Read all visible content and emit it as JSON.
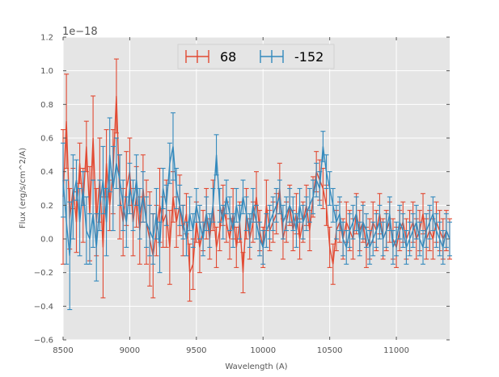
{
  "chart_data": {
    "type": "line",
    "errorbars": true,
    "xlabel": "Wavelength (A)",
    "ylabel": "Flux (erg/s/cm^2/A)",
    "y_offset_label": "1e−18",
    "xlim": [
      8500,
      11400
    ],
    "ylim": [
      -0.6,
      1.2
    ],
    "grid": true,
    "legend_position": "top-center",
    "x_ticks": [
      8500,
      9000,
      9500,
      10000,
      10500,
      11000
    ],
    "x_tick_labels": [
      "8500",
      "9000",
      "9500",
      "10000",
      "10500",
      "11000"
    ],
    "y_ticks": [
      -0.6,
      -0.4,
      -0.2,
      0.0,
      0.2,
      0.4,
      0.6,
      0.8,
      1.0,
      1.2
    ],
    "y_tick_labels": [
      "−0.6",
      "−0.4",
      "−0.2",
      "0.0",
      "0.2",
      "0.4",
      "0.6",
      "0.8",
      "1.0",
      "1.2"
    ],
    "series": [
      {
        "name": "68",
        "color": "#e24a33",
        "x": [
          8500,
          8525,
          8550,
          8575,
          8600,
          8625,
          8650,
          8675,
          8700,
          8725,
          8750,
          8775,
          8800,
          8825,
          8850,
          8875,
          8900,
          8925,
          8950,
          8975,
          9000,
          9025,
          9050,
          9075,
          9100,
          9125,
          9150,
          9175,
          9200,
          9225,
          9250,
          9275,
          9300,
          9325,
          9350,
          9375,
          9400,
          9425,
          9450,
          9475,
          9500,
          9525,
          9550,
          9575,
          9600,
          9625,
          9650,
          9675,
          9700,
          9725,
          9750,
          9775,
          9800,
          9825,
          9850,
          9875,
          9900,
          9925,
          9950,
          9975,
          10000,
          10025,
          10050,
          10075,
          10100,
          10125,
          10150,
          10175,
          10200,
          10225,
          10250,
          10275,
          10300,
          10325,
          10350,
          10375,
          10400,
          10425,
          10450,
          10475,
          10500,
          10525,
          10550,
          10575,
          10600,
          10625,
          10650,
          10675,
          10700,
          10725,
          10750,
          10775,
          10800,
          10825,
          10850,
          10875,
          10900,
          10925,
          10950,
          10975,
          11000,
          11025,
          11050,
          11075,
          11100,
          11125,
          11150,
          11175,
          11200,
          11225,
          11250,
          11275,
          11300,
          11325,
          11350,
          11375,
          11400
        ],
        "y": [
          0.25,
          0.7,
          0.12,
          0.3,
          0.1,
          0.45,
          0.2,
          0.55,
          0.15,
          0.6,
          0.1,
          0.35,
          -0.05,
          0.45,
          0.2,
          0.4,
          0.85,
          0.25,
          0.1,
          0.3,
          0.4,
          0.1,
          0.25,
          0.05,
          0.3,
          0.1,
          0.0,
          -0.1,
          0.05,
          0.2,
          0.1,
          0.15,
          -0.05,
          0.25,
          0.1,
          0.2,
          0.05,
          0.15,
          -0.2,
          -0.15,
          0.1,
          -0.05,
          0.05,
          0.15,
          0.0,
          0.2,
          -0.05,
          0.05,
          0.2,
          0.1,
          0.0,
          0.15,
          -0.05,
          0.1,
          -0.2,
          0.15,
          0.0,
          0.1,
          0.25,
          0.05,
          -0.05,
          0.2,
          0.05,
          0.1,
          0.15,
          0.3,
          0.0,
          0.1,
          0.2,
          0.05,
          0.15,
          0.0,
          0.1,
          0.2,
          0.05,
          0.25,
          0.4,
          0.35,
          0.3,
          0.2,
          -0.05,
          -0.15,
          0.05,
          0.1,
          0.0,
          0.1,
          0.05,
          0.0,
          0.15,
          0.05,
          0.1,
          -0.05,
          0.0,
          0.1,
          0.05,
          0.15,
          0.0,
          0.05,
          0.1,
          0.0,
          -0.05,
          0.05,
          0.1,
          0.0,
          0.05,
          0.1,
          0.0,
          0.05,
          0.15,
          0.0,
          0.05,
          0.0,
          0.1,
          0.05,
          0.0,
          0.05,
          0.0
        ],
        "err": [
          0.4,
          0.28,
          0.18,
          0.12,
          0.18,
          0.12,
          0.22,
          0.15,
          0.28,
          0.25,
          0.2,
          0.25,
          0.3,
          0.2,
          0.15,
          0.25,
          0.22,
          0.25,
          0.2,
          0.22,
          0.2,
          0.2,
          0.18,
          0.2,
          0.2,
          0.25,
          0.28,
          0.25,
          0.15,
          0.22,
          0.15,
          0.2,
          0.22,
          0.15,
          0.15,
          0.18,
          0.15,
          0.12,
          0.17,
          0.15,
          0.12,
          0.15,
          0.12,
          0.15,
          0.12,
          0.15,
          0.12,
          0.12,
          0.12,
          0.12,
          0.12,
          0.15,
          0.12,
          0.12,
          0.12,
          0.15,
          0.12,
          0.12,
          0.15,
          0.12,
          0.12,
          0.15,
          0.12,
          0.12,
          0.12,
          0.15,
          0.12,
          0.12,
          0.12,
          0.12,
          0.12,
          0.12,
          0.12,
          0.12,
          0.12,
          0.12,
          0.12,
          0.12,
          0.12,
          0.12,
          0.12,
          0.12,
          0.12,
          0.12,
          0.12,
          0.12,
          0.12,
          0.12,
          0.12,
          0.12,
          0.12,
          0.12,
          0.12,
          0.12,
          0.12,
          0.12,
          0.12,
          0.12,
          0.12,
          0.12,
          0.12,
          0.12,
          0.12,
          0.12,
          0.12,
          0.12,
          0.12,
          0.12,
          0.12,
          0.12,
          0.12,
          0.12,
          0.12,
          0.12,
          0.12,
          0.12,
          0.12
        ]
      },
      {
        "name": "-152",
        "color": "#348abd",
        "x": [
          8500,
          8525,
          8550,
          8575,
          8600,
          8625,
          8650,
          8675,
          8700,
          8725,
          8750,
          8775,
          8800,
          8825,
          8850,
          8875,
          8900,
          8925,
          8950,
          8975,
          9000,
          9025,
          9050,
          9075,
          9100,
          9125,
          9150,
          9175,
          9200,
          9225,
          9250,
          9275,
          9300,
          9325,
          9350,
          9375,
          9400,
          9425,
          9450,
          9475,
          9500,
          9525,
          9550,
          9575,
          9600,
          9625,
          9650,
          9675,
          9700,
          9725,
          9750,
          9775,
          9800,
          9825,
          9850,
          9875,
          9900,
          9925,
          9950,
          9975,
          10000,
          10025,
          10050,
          10075,
          10100,
          10125,
          10150,
          10175,
          10200,
          10225,
          10250,
          10275,
          10300,
          10325,
          10350,
          10375,
          10400,
          10425,
          10450,
          10475,
          10500,
          10525,
          10550,
          10575,
          10600,
          10625,
          10650,
          10675,
          10700,
          10725,
          10750,
          10775,
          10800,
          10825,
          10850,
          10875,
          10900,
          10925,
          10950,
          10975,
          11000,
          11025,
          11050,
          11075,
          11100,
          11125,
          11150,
          11175,
          11200,
          11225,
          11250,
          11275,
          11300,
          11325,
          11350,
          11375,
          11400
        ],
        "y": [
          0.35,
          0.1,
          -0.1,
          0.25,
          0.35,
          0.1,
          0.3,
          0.05,
          0.0,
          0.15,
          -0.05,
          0.2,
          0.35,
          0.1,
          0.5,
          0.3,
          0.45,
          0.35,
          0.2,
          0.1,
          0.3,
          0.2,
          0.35,
          0.15,
          0.25,
          0.1,
          0.05,
          0.0,
          0.15,
          -0.05,
          0.3,
          0.2,
          0.45,
          0.55,
          0.3,
          0.2,
          0.1,
          0.0,
          0.15,
          0.05,
          0.2,
          0.1,
          0.0,
          0.15,
          0.05,
          0.2,
          0.5,
          0.2,
          0.1,
          0.25,
          0.15,
          0.05,
          0.2,
          0.1,
          0.25,
          0.15,
          0.05,
          0.2,
          0.1,
          0.0,
          -0.05,
          0.05,
          0.1,
          0.15,
          0.2,
          0.25,
          0.1,
          0.15,
          0.2,
          0.15,
          0.05,
          0.2,
          0.1,
          0.15,
          0.2,
          0.25,
          0.35,
          0.3,
          0.55,
          0.4,
          0.3,
          0.2,
          0.1,
          0.15,
          0.0,
          -0.05,
          0.05,
          0.1,
          0.15,
          0.0,
          0.1,
          0.05,
          -0.05,
          0.0,
          0.05,
          0.1,
          0.0,
          0.05,
          0.15,
          -0.05,
          0.0,
          0.1,
          0.05,
          -0.05,
          0.0,
          0.05,
          0.1,
          0.0,
          -0.05,
          0.05,
          0.1,
          0.15,
          0.05,
          0.0,
          -0.05,
          0.05,
          0.0
        ],
        "err": [
          0.22,
          0.25,
          0.32,
          0.25,
          0.12,
          0.2,
          0.1,
          0.2,
          0.15,
          0.2,
          0.2,
          0.15,
          0.2,
          0.2,
          0.22,
          0.25,
          0.15,
          0.15,
          0.15,
          0.15,
          0.15,
          0.15,
          0.15,
          0.15,
          0.15,
          0.15,
          0.15,
          0.15,
          0.15,
          0.15,
          0.12,
          0.12,
          0.12,
          0.2,
          0.12,
          0.12,
          0.1,
          0.1,
          0.1,
          0.1,
          0.1,
          0.1,
          0.1,
          0.1,
          0.1,
          0.1,
          0.12,
          0.1,
          0.1,
          0.1,
          0.1,
          0.1,
          0.1,
          0.1,
          0.1,
          0.1,
          0.1,
          0.1,
          0.1,
          0.1,
          0.1,
          0.1,
          0.1,
          0.1,
          0.1,
          0.1,
          0.1,
          0.1,
          0.1,
          0.1,
          0.1,
          0.1,
          0.1,
          0.1,
          0.1,
          0.1,
          0.1,
          0.1,
          0.09,
          0.1,
          0.1,
          0.1,
          0.1,
          0.1,
          0.1,
          0.1,
          0.1,
          0.1,
          0.1,
          0.1,
          0.1,
          0.1,
          0.1,
          0.1,
          0.1,
          0.1,
          0.1,
          0.1,
          0.1,
          0.1,
          0.1,
          0.1,
          0.1,
          0.1,
          0.1,
          0.1,
          0.1,
          0.1,
          0.1,
          0.1,
          0.1,
          0.1,
          0.1,
          0.1,
          0.1,
          0.1,
          0.1
        ]
      }
    ]
  }
}
